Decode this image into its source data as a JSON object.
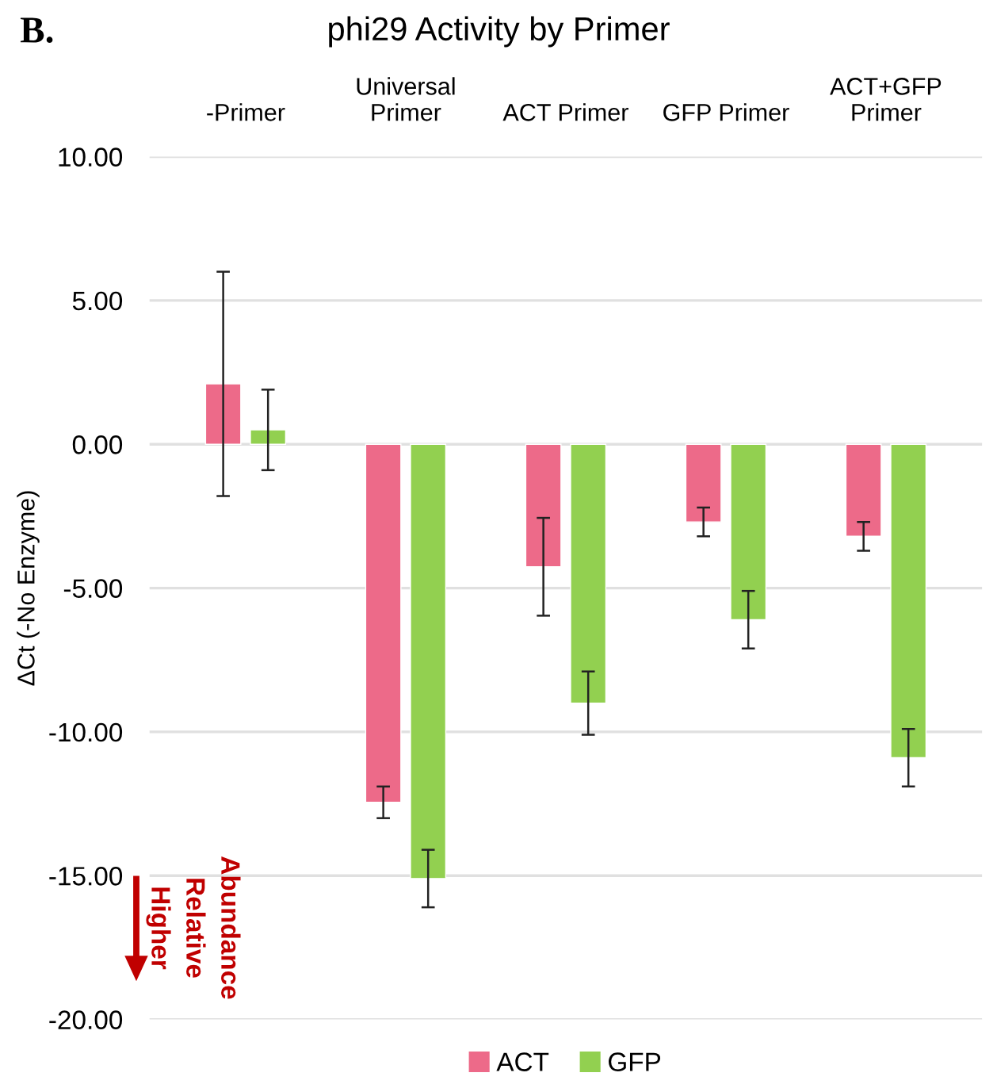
{
  "chart_data": {
    "type": "bar",
    "title": "phi29 Activity by Primer",
    "ylabel": "ΔCt (-No Enzyme)",
    "categories": [
      "-Primer",
      "Universal\nPrimer",
      "ACT Primer",
      "GFP Primer",
      "ACT+GFP\nPrimer"
    ],
    "series": [
      {
        "name": "ACT",
        "color": "#ed6a89",
        "values": [
          2.1,
          -12.45,
          -4.26,
          -2.7,
          -3.2
        ],
        "errors": [
          3.9,
          0.55,
          1.7,
          0.5,
          0.5
        ]
      },
      {
        "name": "GFP",
        "color": "#92d050",
        "values": [
          0.5,
          -15.1,
          -9.0,
          -6.1,
          -10.9
        ],
        "errors": [
          1.4,
          1.0,
          1.1,
          1.0,
          1.0
        ]
      }
    ],
    "ylim": [
      -20,
      10
    ],
    "yticks": [
      {
        "value": -20,
        "label": "-20.00"
      },
      {
        "value": -15,
        "label": "-15.00"
      },
      {
        "value": -10,
        "label": "-10.00"
      },
      {
        "value": -5,
        "label": "-5.00"
      },
      {
        "value": 0,
        "label": "0.00"
      },
      {
        "value": 5,
        "label": "5.00"
      },
      {
        "value": 10,
        "label": "10.00"
      }
    ],
    "grid": "y",
    "legend": "bottom",
    "annotations": [
      "B.",
      "Higher\nRelative\nAbundance"
    ]
  }
}
